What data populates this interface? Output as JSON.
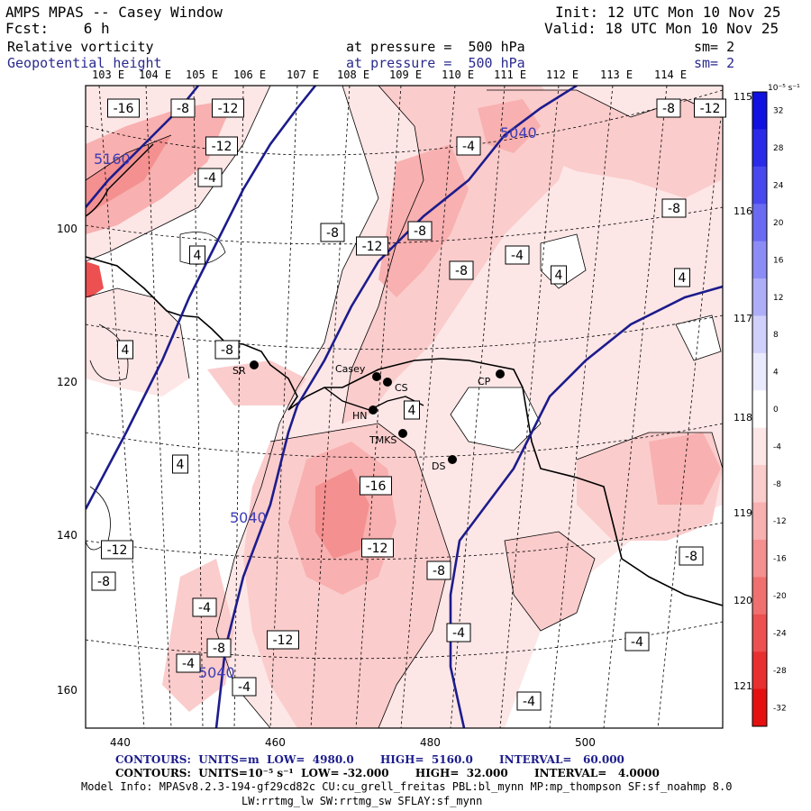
{
  "header": {
    "title": "AMPS MPAS -- Casey Window",
    "fcst": "Fcst:    6 h",
    "init": "Init: 12 UTC Mon 10 Nov 25",
    "valid": "Valid: 18 UTC Mon 10 Nov 25",
    "var1_name": "Relative vorticity",
    "var1_level": "at pressure =  500 hPa",
    "var1_sm": "sm= 2",
    "var2_name": "Geopotential height",
    "var2_level": "at pressure =  500 hPa",
    "var2_sm": "sm= 2"
  },
  "lon_labels_top": [
    "103 E",
    "104 E",
    "105 E",
    "106 E",
    "107 E",
    "108 E",
    "109 E",
    "110 E",
    "111 E",
    "112 E",
    "113 E",
    "114 E"
  ],
  "lon_labels_right": [
    "115 E",
    "116 E",
    "117 E",
    "118 E",
    "119 E",
    "120 E",
    "121 E"
  ],
  "axes": {
    "x_ticks": [
      "440",
      "460",
      "480",
      "500"
    ],
    "y_ticks": [
      "100",
      "120",
      "140",
      "160"
    ]
  },
  "colorbar": {
    "unit": "10⁻⁵ s⁻¹",
    "ticks": [
      "32",
      "28",
      "24",
      "20",
      "16",
      "12",
      "8",
      "4",
      "0",
      "-4",
      "-8",
      "-12",
      "-16",
      "-20",
      "-24",
      "-28",
      "-32"
    ],
    "colors": [
      "#1010e0",
      "#2a2ae8",
      "#4848ee",
      "#6a6af2",
      "#8c8cf6",
      "#aeaef8",
      "#d0d0fb",
      "#eaeafd",
      "#ffffff",
      "#fde6e6",
      "#fbcccc",
      "#f8b0b0",
      "#f49090",
      "#f07070",
      "#ec5050",
      "#e83030",
      "#e41010"
    ]
  },
  "height_contour_labels": [
    "5160",
    "5040",
    "5040",
    "5040"
  ],
  "vorticity_labels": [
    "-16",
    "-8",
    "-12",
    "-12",
    "-4",
    "-8",
    "-12",
    "-4",
    "-8",
    "-12",
    "-8",
    "-8",
    "-4",
    "-8",
    "4",
    "4",
    "4",
    "4",
    "-8",
    "4",
    "4",
    "-16",
    "-12",
    "-8",
    "-8",
    "-4",
    "-4",
    "-12",
    "-4",
    "-4",
    "-4",
    "-4",
    "-8",
    "-12",
    "-8"
  ],
  "stations": [
    {
      "name": "SR"
    },
    {
      "name": "Casey"
    },
    {
      "name": "CS"
    },
    {
      "name": "CP"
    },
    {
      "name": "HN"
    },
    {
      "name": "TMKS"
    },
    {
      "name": "DS"
    }
  ],
  "footer": {
    "contours1": "CONTOURS:  UNITS=m  LOW=  4980.0       HIGH=  5160.0       INTERVAL=   60.000",
    "contours2": "CONTOURS:  UNITS=10⁻⁵ s⁻¹  LOW= -32.000       HIGH=  32.000       INTERVAL=   4.0000",
    "model_info": "Model Info: MPASv8.2.3-194-gf29cd82c CU:cu_grell_freitas PBL:bl_mynn MP:mp_thompson SF:sf_noahmp 8.0",
    "model_info2": "LW:rrtmg_lw SW:rrtmg_sw SFLAY:sf_mynn"
  }
}
